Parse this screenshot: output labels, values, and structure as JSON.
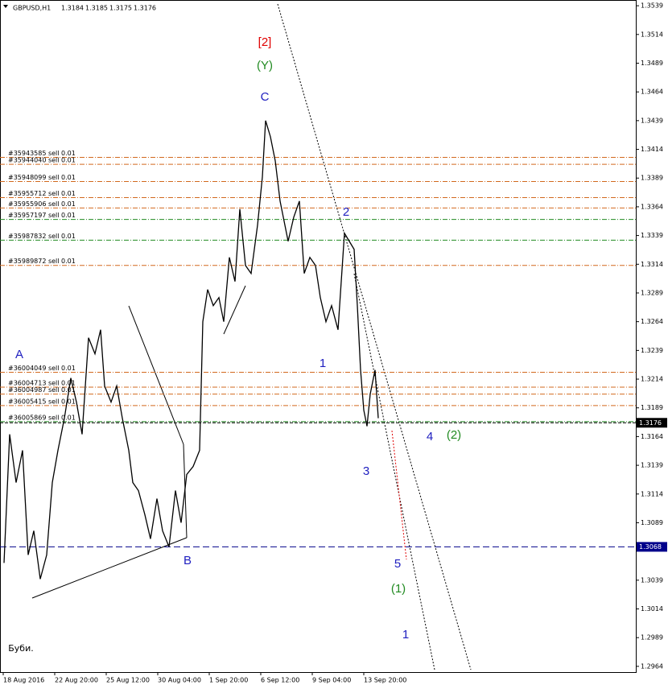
{
  "chart_data": {
    "type": "line",
    "title": "GBPUSD,H1",
    "ohlc_labels": [
      "1.3184",
      "1.3185",
      "1.3175",
      "1.3176"
    ],
    "x": [
      1,
      8,
      16,
      24,
      31,
      38,
      46,
      54,
      61,
      68,
      76,
      84,
      91,
      98,
      106,
      114,
      121,
      126,
      134,
      141,
      148,
      156,
      161,
      168,
      176,
      183,
      191,
      198,
      206,
      214,
      221,
      228,
      236,
      244,
      248,
      254,
      261,
      268,
      274,
      281,
      288,
      294,
      301,
      308,
      316,
      322,
      326,
      332,
      338,
      344,
      348,
      354,
      361,
      368,
      374,
      381,
      388,
      394,
      401,
      408,
      416,
      424,
      430,
      436,
      440,
      444,
      448,
      452,
      456,
      462,
      466
    ],
    "series": [
      {
        "name": "GBPUSD",
        "color": "#000000",
        "values": [
          1.3054,
          1.3166,
          1.3124,
          1.3152,
          1.3061,
          1.3082,
          1.304,
          1.3061,
          1.3124,
          1.3152,
          1.318,
          1.3215,
          1.3194,
          1.3166,
          1.325,
          1.3236,
          1.3257,
          1.3208,
          1.3194,
          1.3208,
          1.318,
          1.3152,
          1.3124,
          1.3117,
          1.3096,
          1.3075,
          1.311,
          1.3082,
          1.3068,
          1.3117,
          1.3089,
          1.3131,
          1.3138,
          1.3152,
          1.3264,
          1.3292,
          1.3278,
          1.3285,
          1.3264,
          1.332,
          1.3299,
          1.3362,
          1.3313,
          1.3306,
          1.3348,
          1.339,
          1.3439,
          1.3425,
          1.3404,
          1.3369,
          1.3355,
          1.3334,
          1.3355,
          1.3369,
          1.3306,
          1.332,
          1.3313,
          1.3285,
          1.3264,
          1.3278,
          1.3257,
          1.3341,
          1.3334,
          1.3327,
          1.3278,
          1.3222,
          1.3187,
          1.3173,
          1.3201,
          1.3222,
          1.318
        ]
      }
    ],
    "xlim": [
      0,
      786
    ],
    "xticks": [
      {
        "value": 0,
        "label": "18 Aug 2016"
      },
      {
        "value": 64,
        "label": "22 Aug 20:00"
      },
      {
        "value": 128,
        "label": "25 Aug 12:00"
      },
      {
        "value": 192,
        "label": "30 Aug 04:00"
      },
      {
        "value": 256,
        "label": "1 Sep 20:00"
      },
      {
        "value": 320,
        "label": "6 Sep 12:00"
      },
      {
        "value": 384,
        "label": "9 Sep 04:00"
      },
      {
        "value": 448,
        "label": "13 Sep 20:00"
      }
    ],
    "ylim": [
      1.2959,
      1.3544
    ],
    "yticks": [
      1.3539,
      1.3514,
      1.3489,
      1.3464,
      1.3439,
      1.3414,
      1.3389,
      1.3364,
      1.3339,
      1.3314,
      1.3289,
      1.3264,
      1.3239,
      1.3214,
      1.3189,
      1.3164,
      1.3139,
      1.3114,
      1.3089,
      1.3039,
      1.3014,
      1.2989,
      1.2964
    ],
    "orders": [
      {
        "label": "#35943585 sell 0.01",
        "price": 1.3407,
        "color": "#d2691e"
      },
      {
        "label": "#35944040 sell 0.01",
        "price": 1.3401,
        "color": "#d2691e"
      },
      {
        "label": "#35948099 sell 0.01",
        "price": 1.3386,
        "color": "#d2691e"
      },
      {
        "label": "#35955712 sell 0.01",
        "price": 1.3372,
        "color": "#d2691e"
      },
      {
        "label": "#35955906 sell 0.01",
        "price": 1.3363,
        "color": "#d2691e"
      },
      {
        "label": "#35957197 sell 0.01",
        "price": 1.3353,
        "color": "#228b22"
      },
      {
        "label": "#35987832 sell 0.01",
        "price": 1.3335,
        "color": "#228b22"
      },
      {
        "label": "#35989872 sell 0.01",
        "price": 1.3313,
        "color": "#d2691e"
      },
      {
        "label": "#36004049 sell 0.01",
        "price": 1.322,
        "color": "#d2691e"
      },
      {
        "label": "#36004713 sell 0.01",
        "price": 1.3207,
        "color": "#d2691e"
      },
      {
        "label": "#36004987 sell 0.01",
        "price": 1.3201,
        "color": "#d2691e"
      },
      {
        "label": "#36005415 sell 0.01",
        "price": 1.3191,
        "color": "#d2691e"
      },
      {
        "label": "#36005869 sell 0.01",
        "price": 1.3177,
        "color": "#228b22"
      }
    ],
    "price_markers": [
      {
        "value": 1.3176,
        "label": "1.3176",
        "color": "#000000"
      },
      {
        "value": 1.3068,
        "label": "1.3068",
        "color": "#00008b"
      }
    ],
    "annotations": [
      {
        "text": "[2]",
        "color": "#e00000"
      },
      {
        "text": "(Y)",
        "color": "#228b22"
      },
      {
        "text": "C",
        "color": "#2020c0"
      },
      {
        "text": "2",
        "color": "#2020c0"
      },
      {
        "text": "1",
        "color": "#2020c0"
      },
      {
        "text": "A",
        "color": "#2020c0"
      },
      {
        "text": "B",
        "color": "#2020c0"
      },
      {
        "text": "3",
        "color": "#2020c0"
      },
      {
        "text": "4",
        "color": "#2020c0"
      },
      {
        "text": "(2)",
        "color": "#228b22"
      },
      {
        "text": "5",
        "color": "#2020c0"
      },
      {
        "text": "(1)",
        "color": "#228b22"
      },
      {
        "text": "1",
        "color": "#2020c0"
      },
      {
        "text": "Буби.",
        "color": "#000000"
      }
    ]
  }
}
